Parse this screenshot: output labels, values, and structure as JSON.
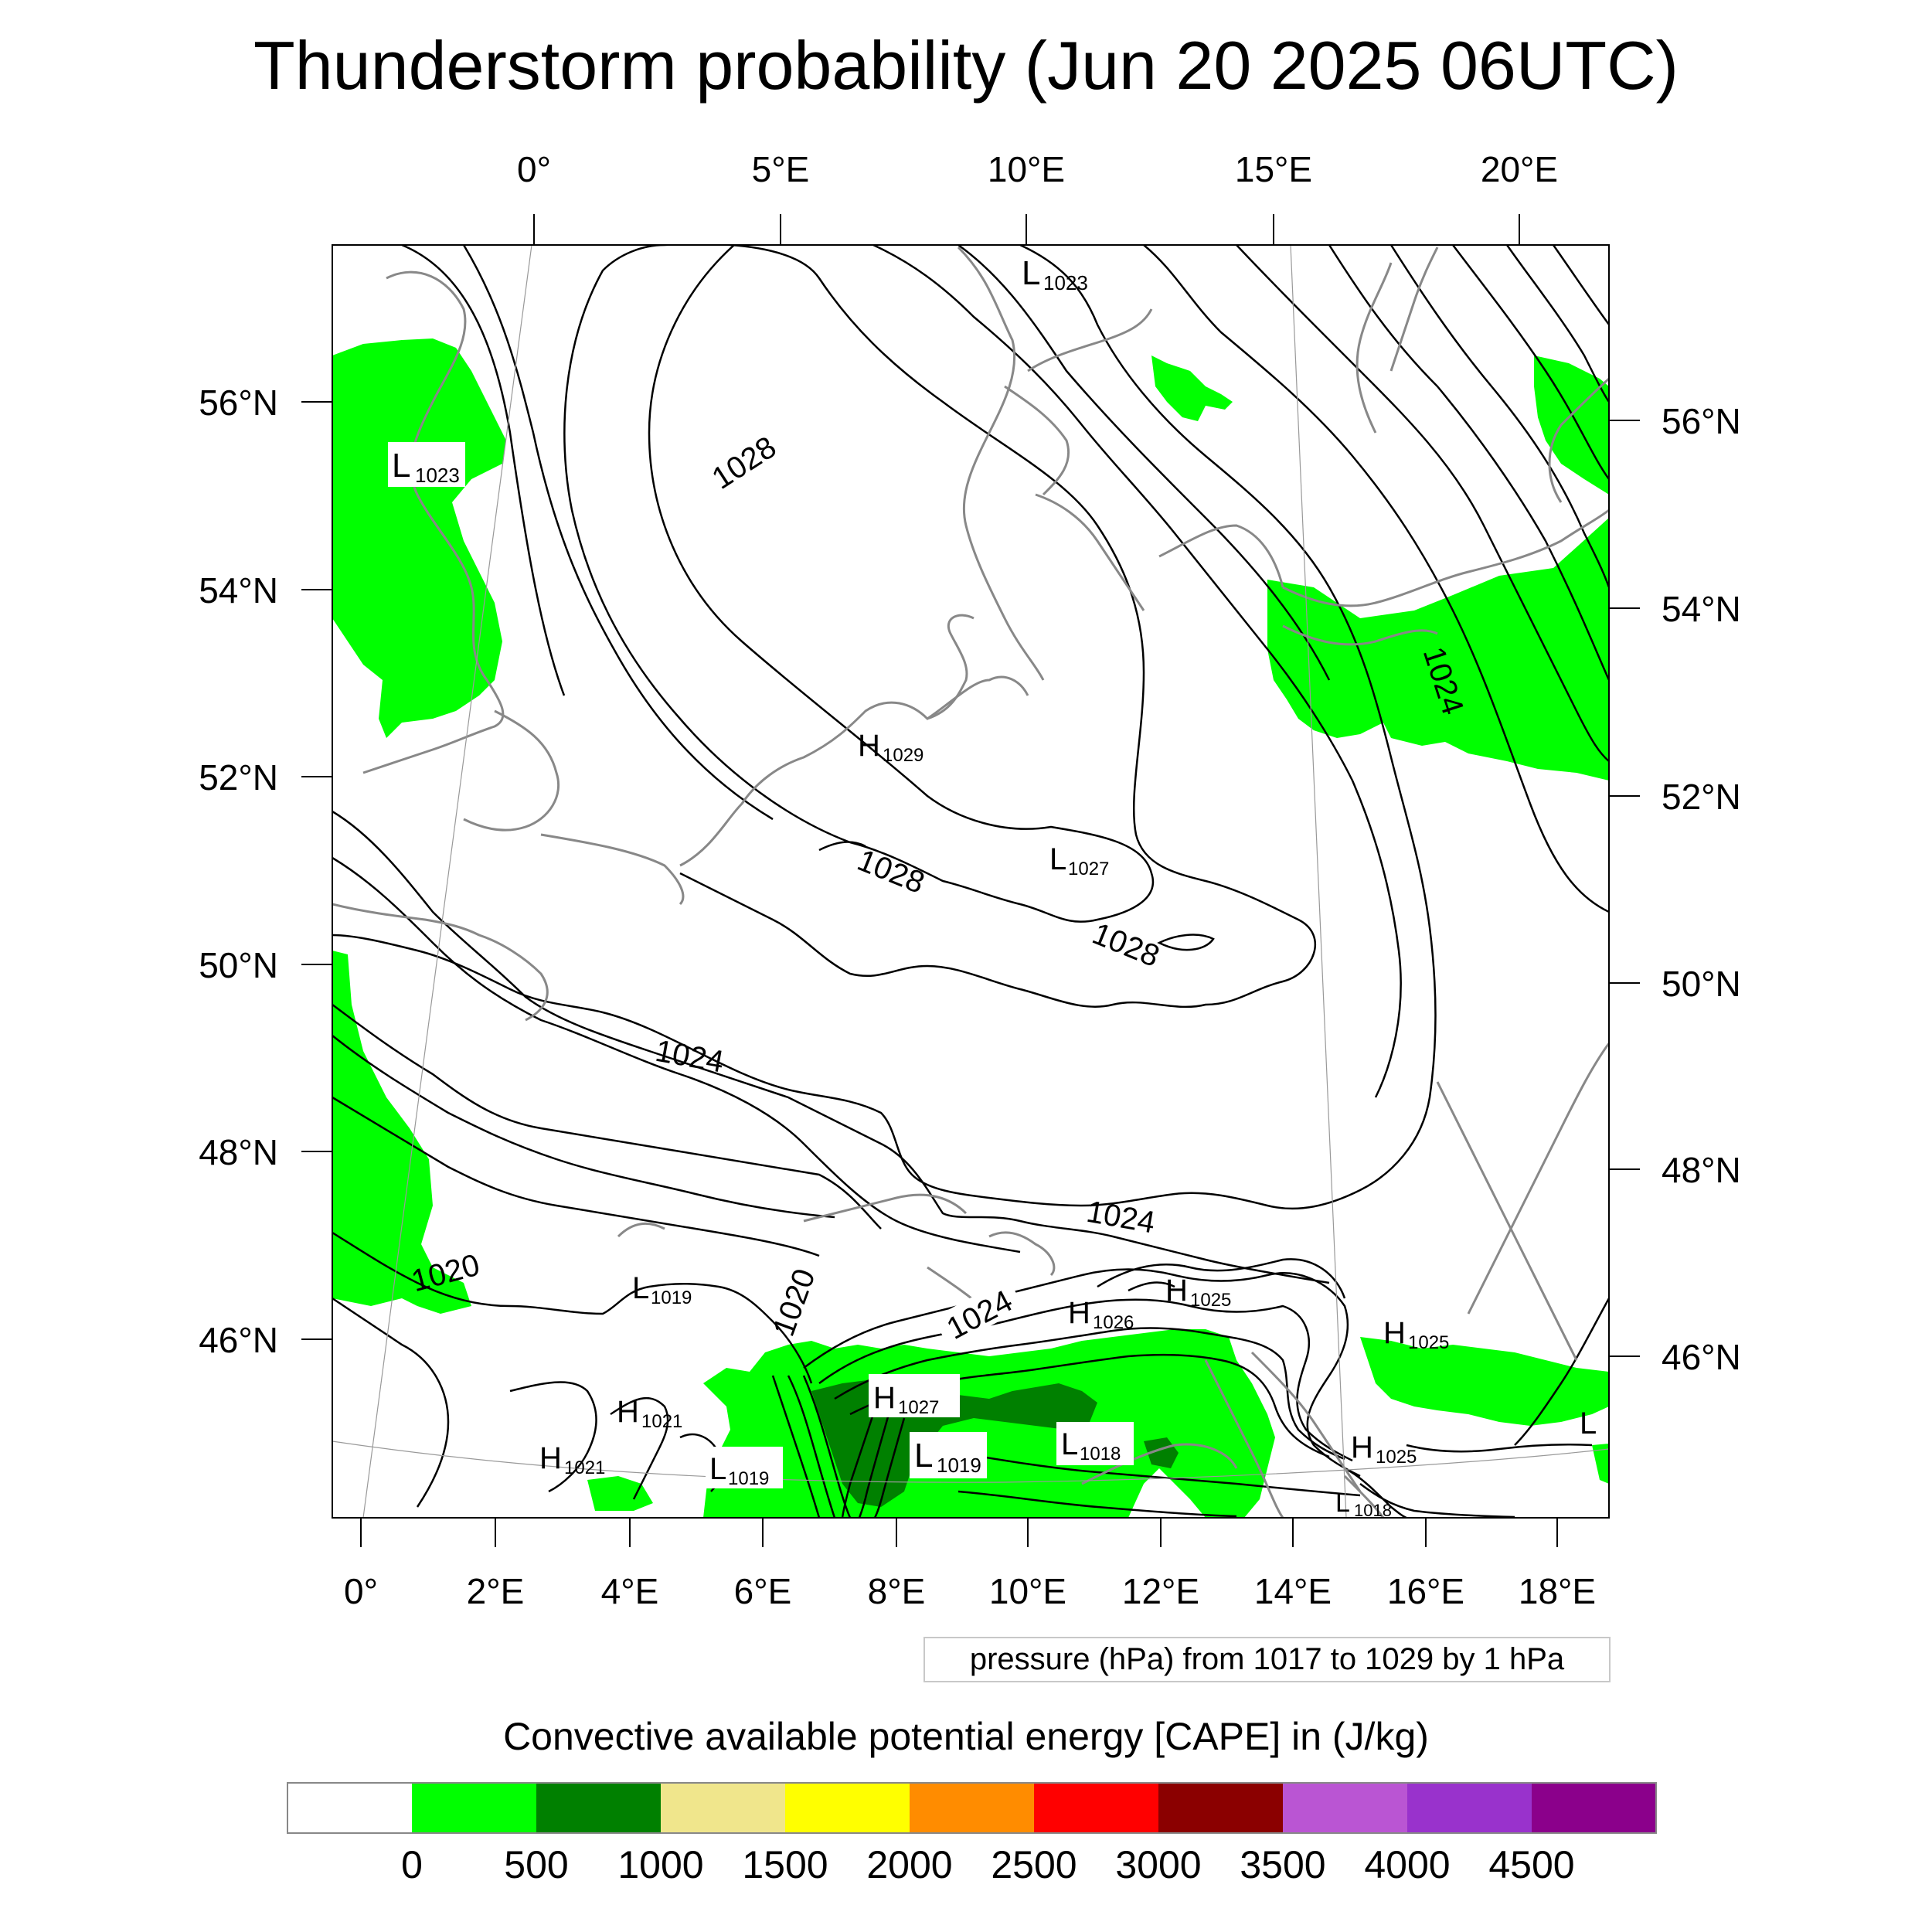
{
  "title": "Thunderstorm probability (Jun 20 2025 06UTC)",
  "top_lon_labels": [
    "0°",
    "5°E",
    "10°E",
    "15°E",
    "20°E"
  ],
  "bottom_lon_labels": [
    "0°",
    "2°E",
    "4°E",
    "6°E",
    "8°E",
    "10°E",
    "12°E",
    "14°E",
    "16°E",
    "18°E"
  ],
  "left_lat_labels": [
    "56°N",
    "54°N",
    "52°N",
    "50°N",
    "48°N",
    "46°N"
  ],
  "right_lat_labels": [
    "56°N",
    "54°N",
    "52°N",
    "50°N",
    "48°N",
    "46°N"
  ],
  "pressure_note": "pressure (hPa) from 1017 to 1029 by 1 hPa",
  "cape_title": "Convective available potential energy [CAPE] in (J/kg)",
  "colorbar": {
    "colors": [
      "#ffffff",
      "#00ff00",
      "#008000",
      "#f0e68c",
      "#ffff00",
      "#ff8c00",
      "#ff0000",
      "#8b0000",
      "#ba55d3",
      "#9932cc",
      "#8b008b"
    ],
    "tick_labels": [
      "0",
      "500",
      "1000",
      "1500",
      "2000",
      "2500",
      "3000",
      "3500",
      "4000",
      "4500"
    ]
  },
  "contour_labels": [
    "1028",
    "1028",
    "1028",
    "1024",
    "1024",
    "1024",
    "1020",
    "1020"
  ],
  "pressure_centers": [
    {
      "type": "L",
      "value": "1023"
    },
    {
      "type": "L",
      "value": "1023"
    },
    {
      "type": "H",
      "value": "1029"
    },
    {
      "type": "L",
      "value": "1027"
    },
    {
      "type": "H",
      "value": "1025"
    },
    {
      "type": "H",
      "value": "1026"
    },
    {
      "type": "L",
      "value": "1019"
    },
    {
      "type": "H",
      "value": "1025"
    },
    {
      "type": "H",
      "value": "1021"
    },
    {
      "type": "H",
      "value": "1027"
    },
    {
      "type": "H",
      "value": "1021"
    },
    {
      "type": "L",
      "value": "1019"
    },
    {
      "type": "L",
      "value": "1019"
    },
    {
      "type": "L",
      "value": "1018"
    },
    {
      "type": "H",
      "value": "1025"
    },
    {
      "type": "L",
      "value": "1018"
    },
    {
      "type": "L",
      "value": ""
    }
  ]
}
